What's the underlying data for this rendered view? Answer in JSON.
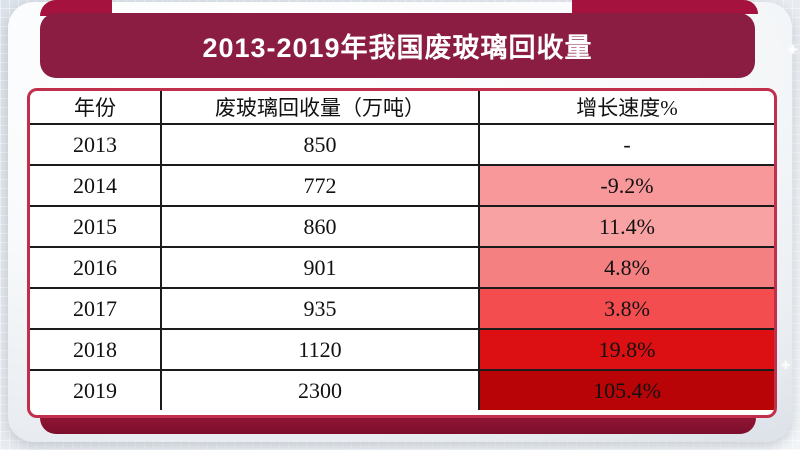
{
  "banner": {
    "title": "2013-2019年我国废玻璃回收量"
  },
  "icons": {
    "sparkle": "+"
  },
  "colors": {
    "banner_bg": "#8b1c42",
    "ribbon_accent": "#a5123e",
    "table_border": "#c22f4c",
    "table_shadow": "#8e1b38"
  },
  "table": {
    "columns": [
      "年份",
      "废玻璃回收量（万吨）",
      "增长速度%"
    ],
    "rows": [
      {
        "year": "2013",
        "volume": "850",
        "growth": "-",
        "growth_bg": "#ffffff"
      },
      {
        "year": "2014",
        "volume": "772",
        "growth": "-9.2%",
        "growth_bg": "#f8989b"
      },
      {
        "year": "2015",
        "volume": "860",
        "growth": "11.4%",
        "growth_bg": "#f9a2a4"
      },
      {
        "year": "2016",
        "volume": "901",
        "growth": "4.8%",
        "growth_bg": "#f58082"
      },
      {
        "year": "2017",
        "volume": "935",
        "growth": "3.8%",
        "growth_bg": "#f34d4f"
      },
      {
        "year": "2018",
        "volume": "1120",
        "growth": "19.8%",
        "growth_bg": "#dc0f13"
      },
      {
        "year": "2019",
        "volume": "2300",
        "growth": "105.4%",
        "growth_bg": "#b80407"
      }
    ]
  },
  "chart_data": {
    "type": "table",
    "title": "2013-2019年我国废玻璃回收量",
    "categories": [
      "2013",
      "2014",
      "2015",
      "2016",
      "2017",
      "2018",
      "2019"
    ],
    "series": [
      {
        "name": "废玻璃回收量（万吨）",
        "values": [
          850,
          772,
          860,
          901,
          935,
          1120,
          2300
        ]
      },
      {
        "name": "增长速度%",
        "values": [
          null,
          -9.2,
          11.4,
          4.8,
          3.8,
          19.8,
          105.4
        ]
      }
    ],
    "layout_hints": {
      "growth_cells_heatmap": "white to dark red with larger magnitude",
      "legend_position": "none",
      "grid": "on"
    }
  }
}
